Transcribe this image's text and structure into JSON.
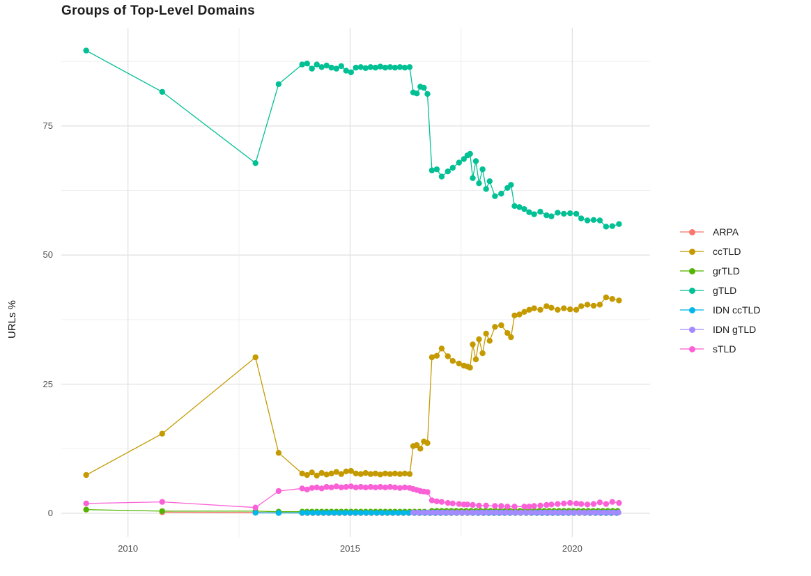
{
  "chart_data": {
    "type": "line",
    "title": "Groups of Top-Level Domains",
    "xlabel": "",
    "ylabel": "URLs %",
    "x_ticks": [
      2010,
      2015,
      2020
    ],
    "x_minor_gridlines": [
      2012.5,
      2017.5
    ],
    "y_ticks": [
      0,
      25,
      50,
      75
    ],
    "y_minor_gridlines": [
      12.5,
      37.5,
      62.5,
      87.5
    ],
    "xlim": [
      2008.5,
      2021.75
    ],
    "ylim": [
      -4.6,
      94
    ],
    "grid": true,
    "legend_position": "right",
    "series": [
      {
        "name": "ARPA",
        "color": "#F8766D",
        "points": [
          [
            2010.77,
            0.2
          ],
          [
            2012.87,
            0.15
          ],
          [
            2013.39,
            0.1
          ]
        ],
        "runs": [
          {
            "from": 2013.92,
            "to": 2021.05,
            "step": 0.12,
            "value": 0.04
          }
        ]
      },
      {
        "name": "ccTLD",
        "color": "#C49A00",
        "points": [
          [
            2009.06,
            7.4
          ],
          [
            2010.77,
            15.4
          ],
          [
            2012.87,
            30.2
          ],
          [
            2013.39,
            11.7
          ],
          [
            2013.92,
            7.7
          ],
          [
            2014.03,
            7.4
          ],
          [
            2014.14,
            7.9
          ],
          [
            2014.25,
            7.3
          ],
          [
            2014.36,
            7.8
          ],
          [
            2014.47,
            7.5
          ],
          [
            2014.58,
            7.7
          ],
          [
            2014.69,
            8.0
          ],
          [
            2014.8,
            7.6
          ],
          [
            2014.91,
            8.1
          ],
          [
            2015.02,
            8.2
          ],
          [
            2015.13,
            7.7
          ],
          [
            2015.24,
            7.6
          ],
          [
            2015.35,
            7.8
          ],
          [
            2015.46,
            7.6
          ],
          [
            2015.57,
            7.7
          ],
          [
            2015.68,
            7.5
          ],
          [
            2015.79,
            7.7
          ],
          [
            2015.9,
            7.6
          ],
          [
            2016.01,
            7.7
          ],
          [
            2016.12,
            7.6
          ],
          [
            2016.23,
            7.7
          ],
          [
            2016.34,
            7.6
          ],
          [
            2016.42,
            13.0
          ],
          [
            2016.5,
            13.2
          ],
          [
            2016.58,
            12.5
          ],
          [
            2016.66,
            13.9
          ],
          [
            2016.74,
            13.6
          ],
          [
            2016.84,
            30.2
          ],
          [
            2016.95,
            30.5
          ],
          [
            2017.06,
            31.9
          ],
          [
            2017.2,
            30.4
          ],
          [
            2017.31,
            29.5
          ],
          [
            2017.45,
            29.0
          ],
          [
            2017.56,
            28.6
          ],
          [
            2017.64,
            28.4
          ],
          [
            2017.7,
            28.2
          ],
          [
            2017.76,
            32.7
          ],
          [
            2017.83,
            29.8
          ],
          [
            2017.9,
            33.7
          ],
          [
            2017.98,
            31.0
          ],
          [
            2018.06,
            34.8
          ],
          [
            2018.14,
            33.4
          ],
          [
            2018.26,
            36.1
          ],
          [
            2018.4,
            36.4
          ],
          [
            2018.54,
            34.9
          ],
          [
            2018.62,
            34.1
          ],
          [
            2018.7,
            38.3
          ],
          [
            2018.81,
            38.5
          ],
          [
            2018.92,
            39.0
          ],
          [
            2019.03,
            39.4
          ],
          [
            2019.14,
            39.7
          ],
          [
            2019.28,
            39.4
          ],
          [
            2019.42,
            40.1
          ],
          [
            2019.53,
            39.8
          ],
          [
            2019.67,
            39.4
          ],
          [
            2019.81,
            39.7
          ],
          [
            2019.95,
            39.5
          ],
          [
            2020.09,
            39.4
          ],
          [
            2020.2,
            40.1
          ],
          [
            2020.34,
            40.4
          ],
          [
            2020.48,
            40.2
          ],
          [
            2020.62,
            40.4
          ],
          [
            2020.76,
            41.8
          ],
          [
            2020.9,
            41.5
          ],
          [
            2021.05,
            41.2
          ]
        ],
        "runs": []
      },
      {
        "name": "grTLD",
        "color": "#53B400",
        "points": [
          [
            2009.06,
            0.7
          ],
          [
            2010.77,
            0.4
          ],
          [
            2012.87,
            0.4
          ],
          [
            2013.39,
            0.3
          ]
        ],
        "runs": [
          {
            "from": 2013.92,
            "to": 2016.74,
            "step": 0.11,
            "value": 0.3
          },
          {
            "from": 2016.84,
            "to": 2021.05,
            "step": 0.11,
            "value": 0.45
          }
        ]
      },
      {
        "name": "gTLD",
        "color": "#00C094",
        "points": [
          [
            2009.06,
            89.6
          ],
          [
            2010.77,
            81.6
          ],
          [
            2012.87,
            67.8
          ],
          [
            2013.39,
            83.1
          ],
          [
            2013.92,
            86.9
          ],
          [
            2014.03,
            87.1
          ],
          [
            2014.14,
            86.1
          ],
          [
            2014.25,
            86.9
          ],
          [
            2014.36,
            86.4
          ],
          [
            2014.47,
            86.7
          ],
          [
            2014.58,
            86.3
          ],
          [
            2014.69,
            86.1
          ],
          [
            2014.8,
            86.6
          ],
          [
            2014.91,
            85.7
          ],
          [
            2015.02,
            85.4
          ],
          [
            2015.13,
            86.3
          ],
          [
            2015.24,
            86.4
          ],
          [
            2015.35,
            86.2
          ],
          [
            2015.46,
            86.4
          ],
          [
            2015.57,
            86.3
          ],
          [
            2015.68,
            86.5
          ],
          [
            2015.79,
            86.3
          ],
          [
            2015.9,
            86.4
          ],
          [
            2016.01,
            86.3
          ],
          [
            2016.12,
            86.4
          ],
          [
            2016.23,
            86.3
          ],
          [
            2016.34,
            86.4
          ],
          [
            2016.42,
            81.5
          ],
          [
            2016.5,
            81.3
          ],
          [
            2016.58,
            82.6
          ],
          [
            2016.66,
            82.4
          ],
          [
            2016.74,
            81.2
          ],
          [
            2016.84,
            66.4
          ],
          [
            2016.95,
            66.6
          ],
          [
            2017.06,
            65.2
          ],
          [
            2017.2,
            66.2
          ],
          [
            2017.31,
            66.9
          ],
          [
            2017.45,
            67.9
          ],
          [
            2017.56,
            68.6
          ],
          [
            2017.64,
            69.3
          ],
          [
            2017.7,
            69.6
          ],
          [
            2017.76,
            64.9
          ],
          [
            2017.83,
            68.2
          ],
          [
            2017.9,
            63.9
          ],
          [
            2017.98,
            66.6
          ],
          [
            2018.06,
            62.8
          ],
          [
            2018.14,
            64.3
          ],
          [
            2018.26,
            61.4
          ],
          [
            2018.4,
            61.9
          ],
          [
            2018.54,
            63.0
          ],
          [
            2018.62,
            63.6
          ],
          [
            2018.7,
            59.5
          ],
          [
            2018.81,
            59.3
          ],
          [
            2018.92,
            58.9
          ],
          [
            2019.03,
            58.3
          ],
          [
            2019.14,
            57.9
          ],
          [
            2019.28,
            58.4
          ],
          [
            2019.42,
            57.7
          ],
          [
            2019.53,
            57.5
          ],
          [
            2019.67,
            58.2
          ],
          [
            2019.81,
            58.0
          ],
          [
            2019.95,
            58.1
          ],
          [
            2020.09,
            58.0
          ],
          [
            2020.2,
            57.1
          ],
          [
            2020.34,
            56.7
          ],
          [
            2020.48,
            56.8
          ],
          [
            2020.62,
            56.7
          ],
          [
            2020.76,
            55.5
          ],
          [
            2020.9,
            55.6
          ],
          [
            2021.05,
            56.0
          ]
        ],
        "runs": []
      },
      {
        "name": "IDN ccTLD",
        "color": "#00B6EB",
        "points": [
          [
            2012.87,
            0.1
          ],
          [
            2013.39,
            0.05
          ]
        ],
        "runs": [
          {
            "from": 2013.92,
            "to": 2021.05,
            "step": 0.12,
            "value": 0.08
          }
        ]
      },
      {
        "name": "IDN gTLD",
        "color": "#A58AFF",
        "points": [],
        "runs": [
          {
            "from": 2016.42,
            "to": 2021.05,
            "step": 0.11,
            "value": 0.15
          }
        ]
      },
      {
        "name": "sTLD",
        "color": "#FB61D7",
        "points": [
          [
            2009.06,
            1.9
          ],
          [
            2010.77,
            2.2
          ],
          [
            2012.87,
            1.1
          ],
          [
            2013.39,
            4.3
          ],
          [
            2013.92,
            4.8
          ],
          [
            2014.03,
            4.6
          ],
          [
            2014.14,
            4.9
          ],
          [
            2014.25,
            5.0
          ],
          [
            2014.36,
            4.8
          ],
          [
            2014.47,
            5.1
          ],
          [
            2014.58,
            5.0
          ],
          [
            2014.69,
            5.2
          ],
          [
            2014.8,
            5.0
          ],
          [
            2014.91,
            5.1
          ],
          [
            2015.02,
            5.2
          ],
          [
            2015.13,
            5.0
          ],
          [
            2015.24,
            5.1
          ],
          [
            2015.35,
            5.0
          ],
          [
            2015.46,
            5.1
          ],
          [
            2015.57,
            5.0
          ],
          [
            2015.68,
            5.1
          ],
          [
            2015.79,
            5.0
          ],
          [
            2015.9,
            5.1
          ],
          [
            2016.01,
            5.0
          ],
          [
            2016.12,
            4.9
          ],
          [
            2016.23,
            5.0
          ],
          [
            2016.34,
            4.9
          ],
          [
            2016.42,
            4.7
          ],
          [
            2016.5,
            4.5
          ],
          [
            2016.58,
            4.3
          ],
          [
            2016.66,
            4.2
          ],
          [
            2016.74,
            4.1
          ],
          [
            2016.84,
            2.5
          ],
          [
            2016.95,
            2.3
          ],
          [
            2017.06,
            2.2
          ],
          [
            2017.2,
            2.0
          ],
          [
            2017.31,
            1.9
          ],
          [
            2017.45,
            1.8
          ],
          [
            2017.56,
            1.7
          ],
          [
            2017.64,
            1.7
          ],
          [
            2017.76,
            1.6
          ],
          [
            2017.9,
            1.5
          ],
          [
            2018.06,
            1.5
          ],
          [
            2018.26,
            1.4
          ],
          [
            2018.4,
            1.4
          ],
          [
            2018.54,
            1.3
          ],
          [
            2018.7,
            1.3
          ],
          [
            2018.92,
            1.3
          ],
          [
            2019.03,
            1.3
          ],
          [
            2019.14,
            1.4
          ],
          [
            2019.28,
            1.5
          ],
          [
            2019.42,
            1.6
          ],
          [
            2019.53,
            1.7
          ],
          [
            2019.67,
            1.8
          ],
          [
            2019.81,
            1.9
          ],
          [
            2019.95,
            2.0
          ],
          [
            2020.09,
            1.9
          ],
          [
            2020.2,
            1.8
          ],
          [
            2020.34,
            1.7
          ],
          [
            2020.48,
            1.8
          ],
          [
            2020.62,
            2.1
          ],
          [
            2020.76,
            1.8
          ],
          [
            2020.9,
            2.2
          ],
          [
            2021.05,
            2.0
          ]
        ],
        "runs": []
      }
    ]
  },
  "style": {
    "background": "#ffffff",
    "grid_major_color": "#e3e3e3",
    "grid_minor_color": "#f0f0f0",
    "tick_label_color": "#4d4d4d",
    "title_color": "#1c1c1c"
  }
}
